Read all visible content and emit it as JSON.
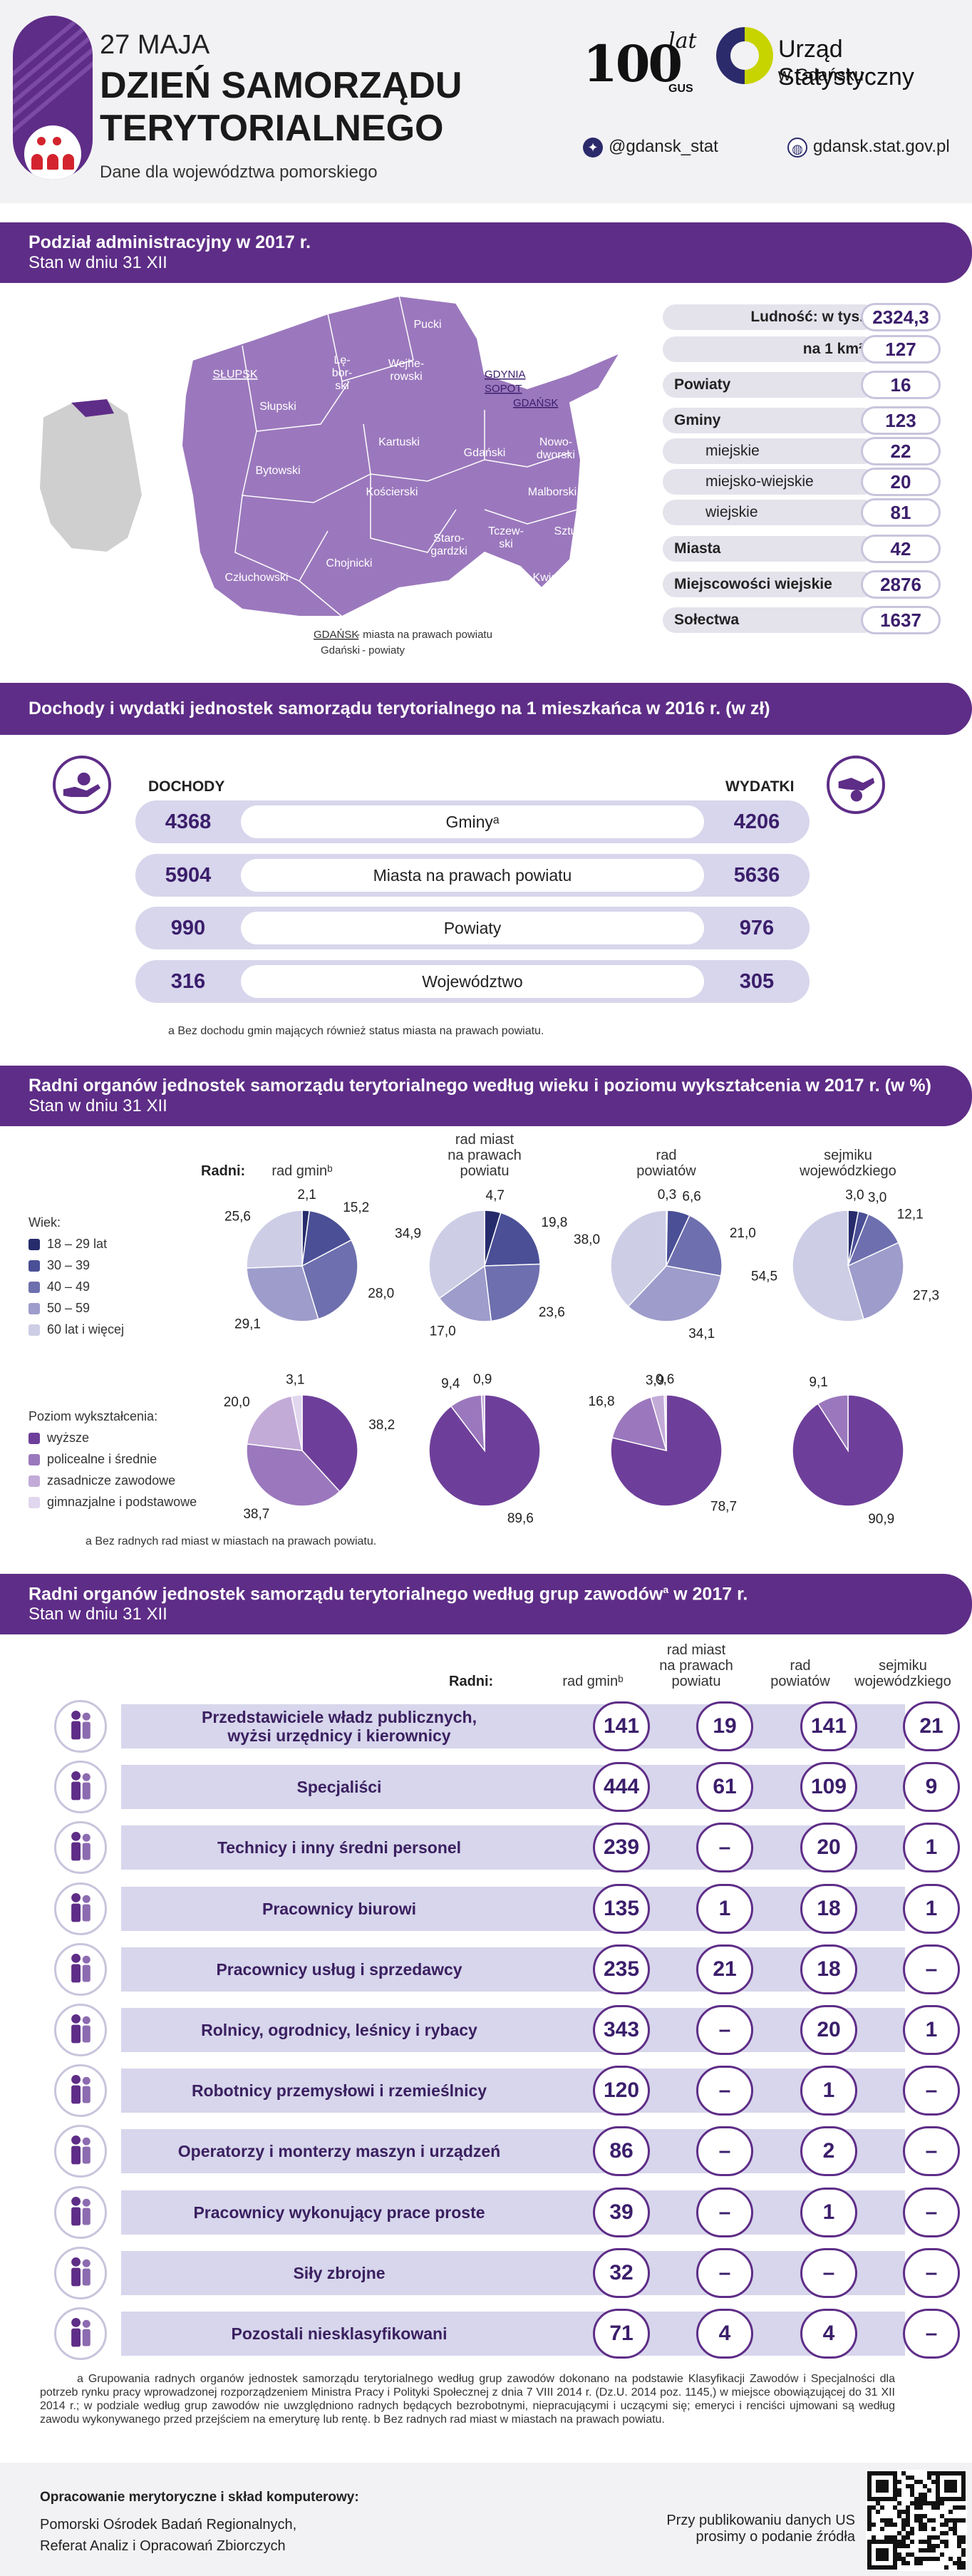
{
  "header": {
    "date": "27 MAJA",
    "title_line1": "DZIEŃ SAMORZĄDU",
    "title_line2": "TERYTORIALNEGO",
    "subtitle": "Dane dla województwa pomorskiego",
    "logo_100": "100",
    "logo_lat": "lat",
    "logo_gus": "GUS",
    "office_name": "Urząd Statystyczny",
    "office_city": "w Gdańsku",
    "twitter": "@gdansk_stat",
    "website": "gdansk.stat.gov.pl"
  },
  "colors": {
    "primary": "#5e2d87",
    "accent_light": "#d7d6ec",
    "header_bg": "#f2f2f4"
  },
  "section1": {
    "title": "Podział administracyjny w 2017 r.",
    "subtitle": "Stan w dniu 31 XII",
    "map_labels": [
      "Pucki",
      "Lę-\nbor-\nski",
      "Wejhe-\nrowski",
      "SŁUPSK",
      "Słupski",
      "GDYNIA",
      "SOPOT",
      "GDAŃSK",
      "Kartuski",
      "Gdański",
      "Nowo-\ndworski",
      "Bytowski",
      "Kościerski",
      "Malborski",
      "Tczew-\nski",
      "Sztumski",
      "Staro-\ngardzki",
      "Chojnicki",
      "Człuchowski",
      "Kwidzyń-\nski"
    ],
    "legend_city": "GDAŃSK",
    "legend_city_text": "- miasta na prawach powiatu",
    "legend_county": "Gdański",
    "legend_county_text": "- powiaty",
    "stats": [
      {
        "label": "Ludność: w tys.",
        "value": "2324,3",
        "style": "main"
      },
      {
        "label": "na 1 km²",
        "value": "127",
        "style": "main"
      },
      {
        "label": "Powiaty",
        "value": "16",
        "style": "left"
      },
      {
        "label": "Gminy",
        "value": "123",
        "style": "left"
      },
      {
        "label": "miejskie",
        "value": "22",
        "style": "sub"
      },
      {
        "label": "miejsko-wiejskie",
        "value": "20",
        "style": "sub"
      },
      {
        "label": "wiejskie",
        "value": "81",
        "style": "sub"
      },
      {
        "label": "Miasta",
        "value": "42",
        "style": "left"
      },
      {
        "label": "Miejscowości wiejskie",
        "value": "2876",
        "style": "left"
      },
      {
        "label": "Sołectwa",
        "value": "1637",
        "style": "left"
      }
    ]
  },
  "section2": {
    "title": "Dochody i wydatki jednostek samorządu terytorialnego na 1 mieszkańca w 2016 r. (w zł)",
    "left_head": "DOCHODY",
    "right_head": "WYDATKI",
    "rows": [
      {
        "label": "Gminyᵃ",
        "income": "4368",
        "expense": "4206"
      },
      {
        "label": "Miasta na prawach powiatu",
        "income": "5904",
        "expense": "5636"
      },
      {
        "label": "Powiaty",
        "income": "990",
        "expense": "976"
      },
      {
        "label": "Województwo",
        "income": "316",
        "expense": "305"
      }
    ],
    "footnote": "a Bez dochodu gmin mających również status miasta na prawach powiatu."
  },
  "section3": {
    "title": "Radni organów jednostek samorządu terytorialnego według wieku i poziomu wykształcenia w  2017 r. (w %)",
    "subtitle": "Stan w dniu 31 XII",
    "radni_label": "Radni:",
    "columns": [
      "rad gminᵇ",
      "rad miast\nna prawach\npowiatu",
      "rad\npowiatów",
      "sejmiku\nwojewódzkiego"
    ],
    "age_legend_title": "Wiek:",
    "age_legend": [
      "18 – 29 lat",
      "30 – 39",
      "40 – 49",
      "50 – 59",
      "60 lat i więcej"
    ],
    "age_colors": [
      "#262c6b",
      "#4a4f96",
      "#6e6fae",
      "#9d9ccb",
      "#cdcde6"
    ],
    "edu_legend_title": "Poziom wykształcenia:",
    "edu_legend": [
      "wyższe",
      "policealne i średnie",
      "zasadnicze zawodowe",
      "gimnazjalne i podstawowe"
    ],
    "edu_colors": [
      "#6e3f9a",
      "#9b78bd",
      "#c3abd8",
      "#e1d7ee"
    ],
    "footnote": "a Bez radnych rad miast w miastach na prawach powiatu."
  },
  "chart_data": [
    {
      "type": "pie",
      "title": "rad gminᵇ — wiek",
      "categories": [
        "18 – 29 lat",
        "30 – 39",
        "40 – 49",
        "50 – 59",
        "60 lat i więcej"
      ],
      "values": [
        2.1,
        15.2,
        28.0,
        29.1,
        25.6
      ]
    },
    {
      "type": "pie",
      "title": "rad miast na prawach powiatu — wiek",
      "categories": [
        "18 – 29 lat",
        "30 – 39",
        "40 – 49",
        "50 – 59",
        "60 lat i więcej"
      ],
      "values": [
        4.7,
        19.8,
        23.6,
        17.0,
        34.9
      ]
    },
    {
      "type": "pie",
      "title": "rad powiatów — wiek",
      "categories": [
        "18 – 29 lat",
        "30 – 39",
        "40 – 49",
        "50 – 59",
        "60 lat i więcej"
      ],
      "values": [
        0.3,
        6.6,
        21.0,
        34.1,
        38.0
      ]
    },
    {
      "type": "pie",
      "title": "sejmiku wojewódzkiego — wiek",
      "categories": [
        "18 – 29 lat",
        "30 – 39",
        "40 – 49",
        "50 – 59",
        "60 lat i więcej"
      ],
      "values": [
        3.0,
        3.0,
        12.1,
        27.3,
        54.5
      ]
    },
    {
      "type": "pie",
      "title": "rad gminᵇ — wykształcenie",
      "categories": [
        "wyższe",
        "policealne i średnie",
        "zasadnicze zawodowe",
        "gimnazjalne i podstawowe"
      ],
      "values": [
        38.2,
        38.7,
        20.0,
        3.1
      ]
    },
    {
      "type": "pie",
      "title": "rad miast na prawach powiatu — wykształcenie",
      "categories": [
        "wyższe",
        "policealne i średnie",
        "zasadnicze zawodowe",
        "gimnazjalne i podstawowe"
      ],
      "values": [
        89.6,
        9.4,
        0.9,
        0.0
      ]
    },
    {
      "type": "pie",
      "title": "rad powiatów — wykształcenie",
      "categories": [
        "wyższe",
        "policealne i średnie",
        "zasadnicze zawodowe",
        "gimnazjalne i podstawowe"
      ],
      "values": [
        78.7,
        16.8,
        3.9,
        0.6
      ]
    },
    {
      "type": "pie",
      "title": "sejmiku wojewódzkiego — wykształcenie",
      "categories": [
        "wyższe",
        "policealne i średnie",
        "zasadnicze zawodowe",
        "gimnazjalne i podstawowe"
      ],
      "values": [
        90.9,
        9.1,
        0.0,
        0.0
      ]
    }
  ],
  "section4": {
    "title": "Radni organów jednostek samorządu terytorialnego według grup zawodów",
    "title_sup": "a",
    "title_end": " w 2017 r.",
    "subtitle": "Stan w dniu 31 XII",
    "radni_label": "Radni:",
    "columns": [
      "rad gminᵇ",
      "rad miast\nna prawach\npowiatu",
      "rad\npowiatów",
      "sejmiku\nwojewódzkiego"
    ],
    "rows": [
      {
        "label": "Przedstawiciele władz publicznych,\nwyżsi urzędnicy i kierownicy",
        "values": [
          "141",
          "19",
          "141",
          "21"
        ]
      },
      {
        "label": "Specjaliści",
        "values": [
          "444",
          "61",
          "109",
          "9"
        ]
      },
      {
        "label": "Technicy i inny średni personel",
        "values": [
          "239",
          "–",
          "20",
          "1"
        ]
      },
      {
        "label": "Pracownicy biurowi",
        "values": [
          "135",
          "1",
          "18",
          "1"
        ]
      },
      {
        "label": "Pracownicy usług i sprzedawcy",
        "values": [
          "235",
          "21",
          "18",
          "–"
        ]
      },
      {
        "label": "Rolnicy, ogrodnicy, leśnicy i rybacy",
        "values": [
          "343",
          "–",
          "20",
          "1"
        ]
      },
      {
        "label": "Robotnicy przemysłowi i rzemieślnicy",
        "values": [
          "120",
          "–",
          "1",
          "–"
        ]
      },
      {
        "label": "Operatorzy i monterzy maszyn i urządzeń",
        "values": [
          "86",
          "–",
          "2",
          "–"
        ]
      },
      {
        "label": "Pracownicy wykonujący prace proste",
        "values": [
          "39",
          "–",
          "1",
          "–"
        ]
      },
      {
        "label": "Siły zbrojne",
        "values": [
          "32",
          "–",
          "–",
          "–"
        ]
      },
      {
        "label": "Pozostali niesklasyfikowani",
        "values": [
          "71",
          "4",
          "4",
          "–"
        ]
      }
    ],
    "footnote": "a Grupowania radnych organów jednostek samorządu terytorialnego według grup zawodów dokonano na podstawie Klasyfikacji Zawodów i Specjalności dla potrzeb rynku pracy wprowadzonej rozporządzeniem Ministra Pracy i Polityki Społecznej z dnia 7 VIII 2014 r. (Dz.U. 2014 poz. 1145,) w miejsce obowiązującej do 31 XII 2014 r.; w podziale według grup zawodów nie uwzględniono radnych będących bezrobotnymi, niepracującymi i uczącymi się; emeryci i renciści ujmowani są według zawodu wykonywanego przed przejściem na emeryturę lub rentę.   b Bez radnych rad miast w miastach na prawach powiatu."
  },
  "footer": {
    "heading": "Opracowanie merytoryczne i skład komputerowy:",
    "line1": "Pomorski Ośrodek Badań Regionalnych,",
    "line2": "Referat Analiz i Opracowań Zbiorczych",
    "right1": "Przy publikowaniu danych US",
    "right2": "prosimy o podanie źródła"
  }
}
